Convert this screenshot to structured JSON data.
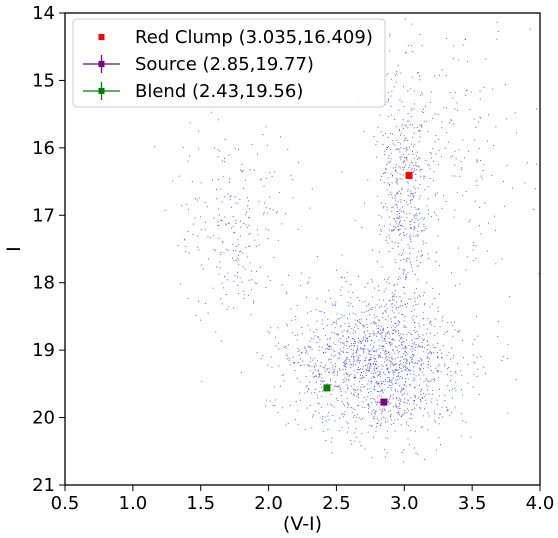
{
  "chart_data": {
    "type": "scatter",
    "title": "",
    "xlabel": "(V-I)",
    "ylabel": "I",
    "xlim": [
      0.5,
      4.0
    ],
    "ylim": [
      21,
      14
    ],
    "y_inverted": true,
    "grid": false,
    "legend_position": "top-left",
    "xticks": [
      "0.5",
      "1.0",
      "1.5",
      "2.0",
      "2.5",
      "3.0",
      "3.5",
      "4.0"
    ],
    "yticks": [
      "14",
      "15",
      "16",
      "17",
      "18",
      "19",
      "20",
      "21"
    ],
    "field_stars": {
      "color": "#0000ff",
      "description_count": 2500,
      "populations": [
        {
          "x_mean": 2.8,
          "y_mean": 19.2,
          "x_sd": 0.32,
          "y_sd": 0.55,
          "weight": 0.62
        },
        {
          "x_mean": 3.0,
          "y_mean": 16.7,
          "x_sd": 0.09,
          "y_sd": 0.9,
          "weight": 0.18
        },
        {
          "x_mean": 1.75,
          "y_mean": 17.2,
          "x_sd": 0.22,
          "y_sd": 0.7,
          "weight": 0.1
        },
        {
          "x_mean": 3.3,
          "y_mean": 16.0,
          "x_sd": 0.35,
          "y_sd": 1.0,
          "weight": 0.1
        }
      ]
    },
    "series": [
      {
        "name": "Red Clump (3.035,16.409)",
        "x": 3.035,
        "y": 16.409,
        "color": "#ff0000",
        "marker": "square",
        "error_bars": false
      },
      {
        "name": "Source (2.85,19.77)",
        "x": 2.85,
        "y": 19.77,
        "color": "#800080",
        "marker": "square",
        "error_bars": true
      },
      {
        "name": "Blend (2.43,19.56)",
        "x": 2.43,
        "y": 19.56,
        "color": "#008000",
        "marker": "square",
        "error_bars": true
      }
    ]
  }
}
